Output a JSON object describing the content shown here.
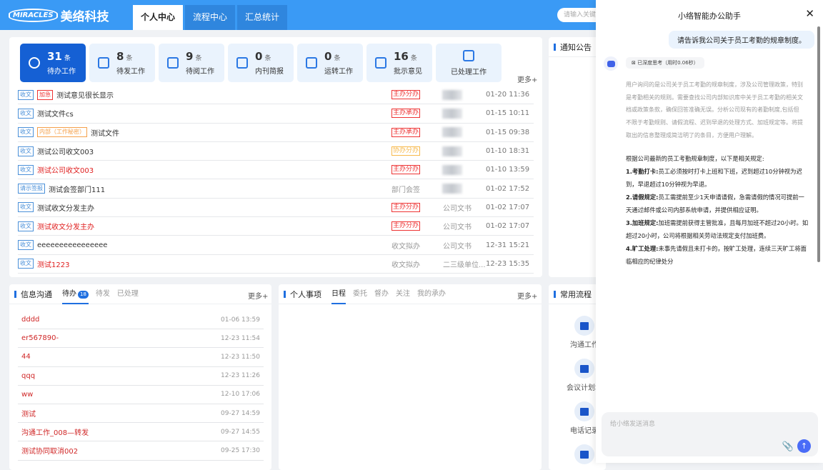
{
  "header": {
    "logo_mark": "MIRACLES",
    "logo_name": "美络科技",
    "tabs": [
      "个人中心",
      "流程中心",
      "汇总统计"
    ],
    "search_placeholder": "请输入关键字"
  },
  "stats": [
    {
      "num": "31",
      "unit": "条",
      "label": "待办工作",
      "icon": "alarm-clock-icon"
    },
    {
      "num": "8",
      "unit": "条",
      "label": "待发工作",
      "icon": "monitor-chart-icon"
    },
    {
      "num": "9",
      "unit": "条",
      "label": "待阅工作",
      "icon": "book-icon"
    },
    {
      "num": "0",
      "unit": "条",
      "label": "内刊简报",
      "icon": "book-icon"
    },
    {
      "num": "0",
      "unit": "条",
      "label": "运转工作",
      "icon": "transfer-icon"
    },
    {
      "num": "16",
      "unit": "条",
      "label": "批示意见",
      "icon": "document-user-icon"
    },
    {
      "num": "",
      "unit": "",
      "label": "已处理工作",
      "icon": "monitor-check-icon"
    }
  ],
  "more_label": "更多+",
  "work_rows": [
    {
      "type": "收文",
      "extra": "加急",
      "extra_kind": "urgent",
      "title": "测试意见很长显示",
      "red": false,
      "status": "主办分办",
      "status_kind": "red",
      "sender": "",
      "time": "01-20 11:36"
    },
    {
      "type": "收文",
      "extra": "",
      "title": "测试文件cs",
      "red": false,
      "status": "主办承办",
      "status_kind": "red",
      "sender": "",
      "time": "01-15 10:11"
    },
    {
      "type": "收文",
      "extra": "内部（工作秘密）",
      "extra_kind": "inner",
      "title": "测试文件",
      "red": false,
      "status": "主办承办",
      "status_kind": "red",
      "sender": "",
      "time": "01-15 09:38"
    },
    {
      "type": "收文",
      "extra": "",
      "title": "测试公司收文003",
      "red": false,
      "status": "协办分办",
      "status_kind": "yellow",
      "sender": "",
      "time": "01-10 18:31"
    },
    {
      "type": "收文",
      "extra": "",
      "title": "测试公司收文003",
      "red": true,
      "status": "主办分办",
      "status_kind": "red",
      "sender": "",
      "time": "01-10 13:59"
    },
    {
      "type": "请示签报",
      "extra": "",
      "title": "测试会签部门111",
      "red": false,
      "status": "部门会签",
      "status_kind": "plain",
      "sender": "",
      "time": "01-02 17:52"
    },
    {
      "type": "收文",
      "extra": "",
      "title": "测试收文分发主办",
      "red": false,
      "status": "主办分办",
      "status_kind": "red",
      "sender": "公司文书",
      "time": "01-02 17:07"
    },
    {
      "type": "收文",
      "extra": "",
      "title": "测试收文分发主办",
      "red": true,
      "status": "主办分办",
      "status_kind": "red",
      "sender": "公司文书",
      "time": "01-02 17:07"
    },
    {
      "type": "收文",
      "extra": "",
      "title": "eeeeeeeeeeeeeeee",
      "red": false,
      "status": "收文拟办",
      "status_kind": "plain",
      "sender": "公司文书",
      "time": "12-31 15:21"
    },
    {
      "type": "收文",
      "extra": "",
      "title": "测试1223",
      "red": true,
      "status": "收文拟办",
      "status_kind": "plain",
      "sender": "二三级单位...",
      "time": "12-23 15:35"
    }
  ],
  "notice": {
    "title": "通知公告"
  },
  "messages": {
    "title": "信息沟通",
    "tabs": [
      "待办",
      "待发",
      "已处理"
    ],
    "badge": "18",
    "more": "更多+",
    "rows": [
      [
        "dddd",
        "01-06 13:59"
      ],
      [
        "er567890-",
        "12-23 11:54"
      ],
      [
        "44",
        "12-23 11:50"
      ],
      [
        "qqq",
        "12-23 11:26"
      ],
      [
        "ww",
        "12-10 17:06"
      ],
      [
        "测试",
        "09-27 14:59"
      ],
      [
        "沟通工作_008—转发",
        "09-27 14:55"
      ],
      [
        "测试协同取消002",
        "09-25 17:30"
      ]
    ]
  },
  "personal": {
    "title": "个人事项",
    "tabs": [
      "日程",
      "委托",
      "督办",
      "关注",
      "我的承办"
    ],
    "more": "更多+"
  },
  "flows": {
    "title": "常用流程",
    "items": [
      "沟通工作",
      "会议计划填",
      "电话记录",
      ""
    ]
  },
  "assistant": {
    "title": "小络智能办公助手",
    "user_msg": "请告诉我公司关于员工考勤的规章制度。",
    "think_label": "已深度思考（用时0.06秒）",
    "thought": "用户询问的是公司关于员工考勤的规章制度，涉及公司管理政策，特别是考勤相关的规则。需要查找公司内部知识库中关于员工考勤的相关文档或政策条款，确保回答准确无误。分析公司现有的者勤制度,包括但不限于考勤规则、请假流程、迟到早退的处理方式、加班规定等。将提取出的信息整理成简洁明了的条目，方便用户理解。",
    "intro": "根据公司最新的员工考勤规章制度，以下是相关规定:",
    "rules": [
      {
        "head": "1.考勤打卡:",
        "body": "员工必须按时打卡上班和下班，迟到超过10分钟视为迟到，早退超过10分钟视为早退。"
      },
      {
        "head": "2.请假规定:",
        "body": "员工需提前至少1天申请请假，急需请假的情况可提前一天通过邮件或公司内部系统申请，并提供相应证明。"
      },
      {
        "head": "3.加班规定:",
        "body": "加班需提前获得主管批准，且每月加班不超过20小时。如超过20小时，公司将根据相关劳动法规定支付加班费。"
      },
      {
        "head": "4.旷工处理:",
        "body": "未事先请假且未打卡的，按旷工处理，连续三天旷工将面临相应的纪律处分"
      }
    ],
    "input_placeholder": "给小络发送消息"
  },
  "colors": {
    "header": "#3a9af5",
    "accent": "#1f6fe0",
    "urgent": "#e02020",
    "send": "#4a6cf7"
  }
}
